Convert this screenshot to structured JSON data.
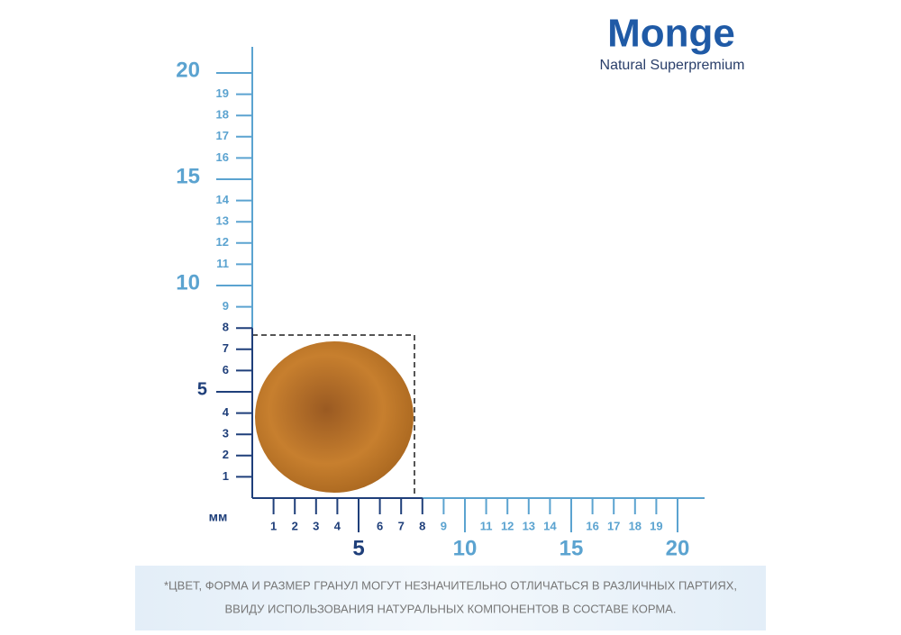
{
  "logo": {
    "brand": "Monge",
    "tagline": "Natural Superpremium"
  },
  "ruler": {
    "unit": "мм",
    "minor_labels": [
      1,
      2,
      3,
      4,
      6,
      7,
      8,
      9,
      11,
      12,
      13,
      14,
      16,
      17,
      18,
      19
    ],
    "major_labels": [
      5,
      10,
      15,
      20
    ]
  },
  "footnote": [
    "*ЦВЕТ, ФОРМА И РАЗМЕР ГРАНУЛ МОГУТ НЕЗНАЧИТЕЛЬНО ОТЛИЧАТЬСЯ В РАЗЛИЧНЫХ ПАРТИЯХ,",
    "ВВИДУ ИСПОЛЬЗОВАНИЯ НАТУРАЛЬНЫХ КОМПОНЕНТОВ В СОСТАВЕ КОРМА."
  ]
}
